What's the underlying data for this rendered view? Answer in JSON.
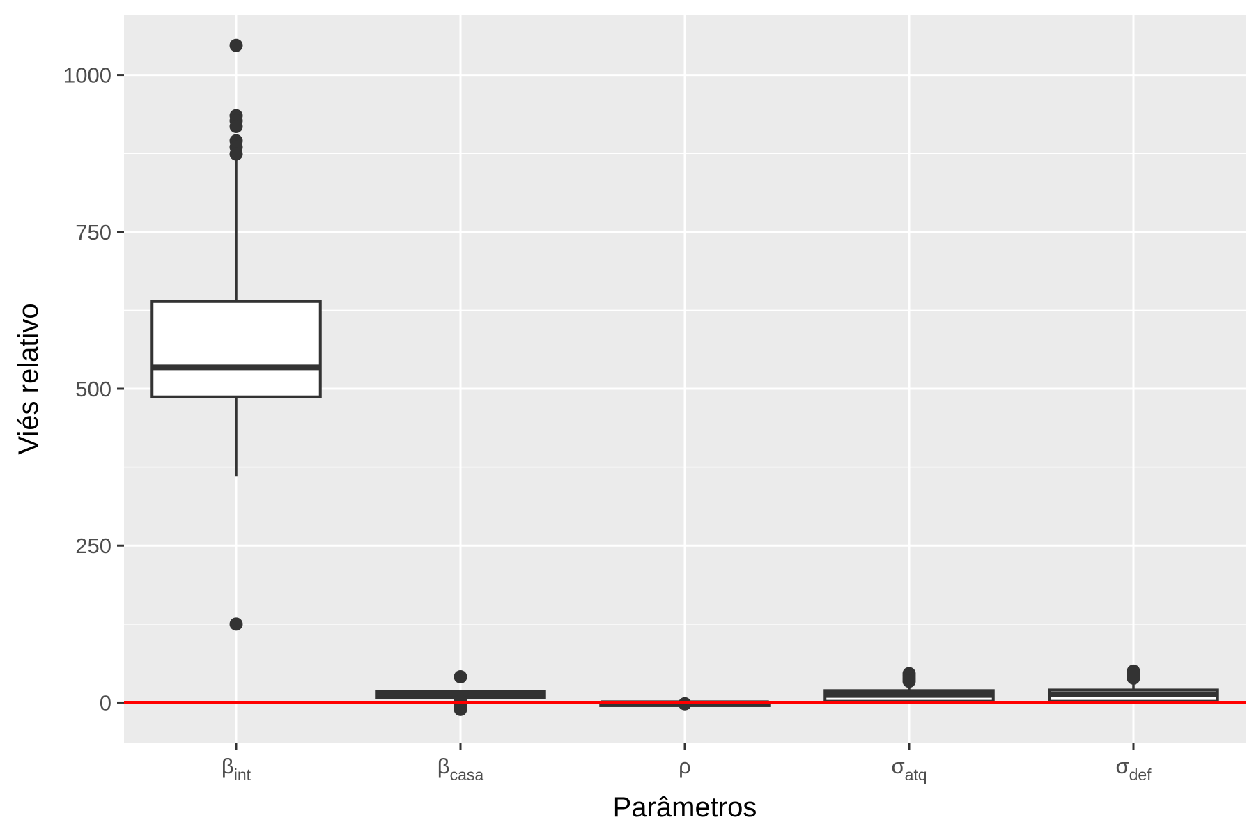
{
  "chart_data": {
    "type": "boxplot",
    "xlabel": "Parâmetros",
    "ylabel": "Viés relativo",
    "ylim": [
      -65,
      1095
    ],
    "y_ticks": [
      0,
      250,
      500,
      750,
      1000
    ],
    "y_tick_labels": [
      "0",
      "250",
      "500",
      "750",
      "1000"
    ],
    "y_minor_ticks": [
      125,
      375,
      625,
      875
    ],
    "reference_line": {
      "value": 0,
      "color": "#ff0000"
    },
    "grid": true,
    "panel_background": "#ebebeb",
    "grid_color": "#ffffff",
    "box_fill": "#ffffff",
    "box_stroke": "#333333",
    "categories": [
      {
        "base": "β",
        "sub": "int"
      },
      {
        "base": "β",
        "sub": "casa"
      },
      {
        "base": "ρ",
        "sub": ""
      },
      {
        "base": "σ",
        "sub": "atq"
      },
      {
        "base": "σ",
        "sub": "def"
      }
    ],
    "boxes": [
      {
        "lower_whisker": 361,
        "q1": 487,
        "median": 534,
        "q3": 639,
        "upper_whisker": 866,
        "outliers": [
          1047,
          935,
          927,
          918,
          895,
          885,
          874,
          125
        ]
      },
      {
        "lower_whisker": 8,
        "q1": 8,
        "median": 14,
        "q3": 18,
        "upper_whisker": 18,
        "outliers": [
          41,
          2,
          -5,
          -11
        ]
      },
      {
        "lower_whisker": -5,
        "q1": -5,
        "median": -1,
        "q3": 0,
        "upper_whisker": 0,
        "outliers": [
          -2
        ]
      },
      {
        "lower_whisker": 2,
        "q1": 2,
        "median": 12,
        "q3": 19,
        "upper_whisker": 30,
        "outliers": [
          46,
          42,
          38,
          34
        ]
      },
      {
        "lower_whisker": 2,
        "q1": 2,
        "median": 13,
        "q3": 20,
        "upper_whisker": 30,
        "outliers": [
          50,
          44,
          39
        ]
      }
    ]
  }
}
